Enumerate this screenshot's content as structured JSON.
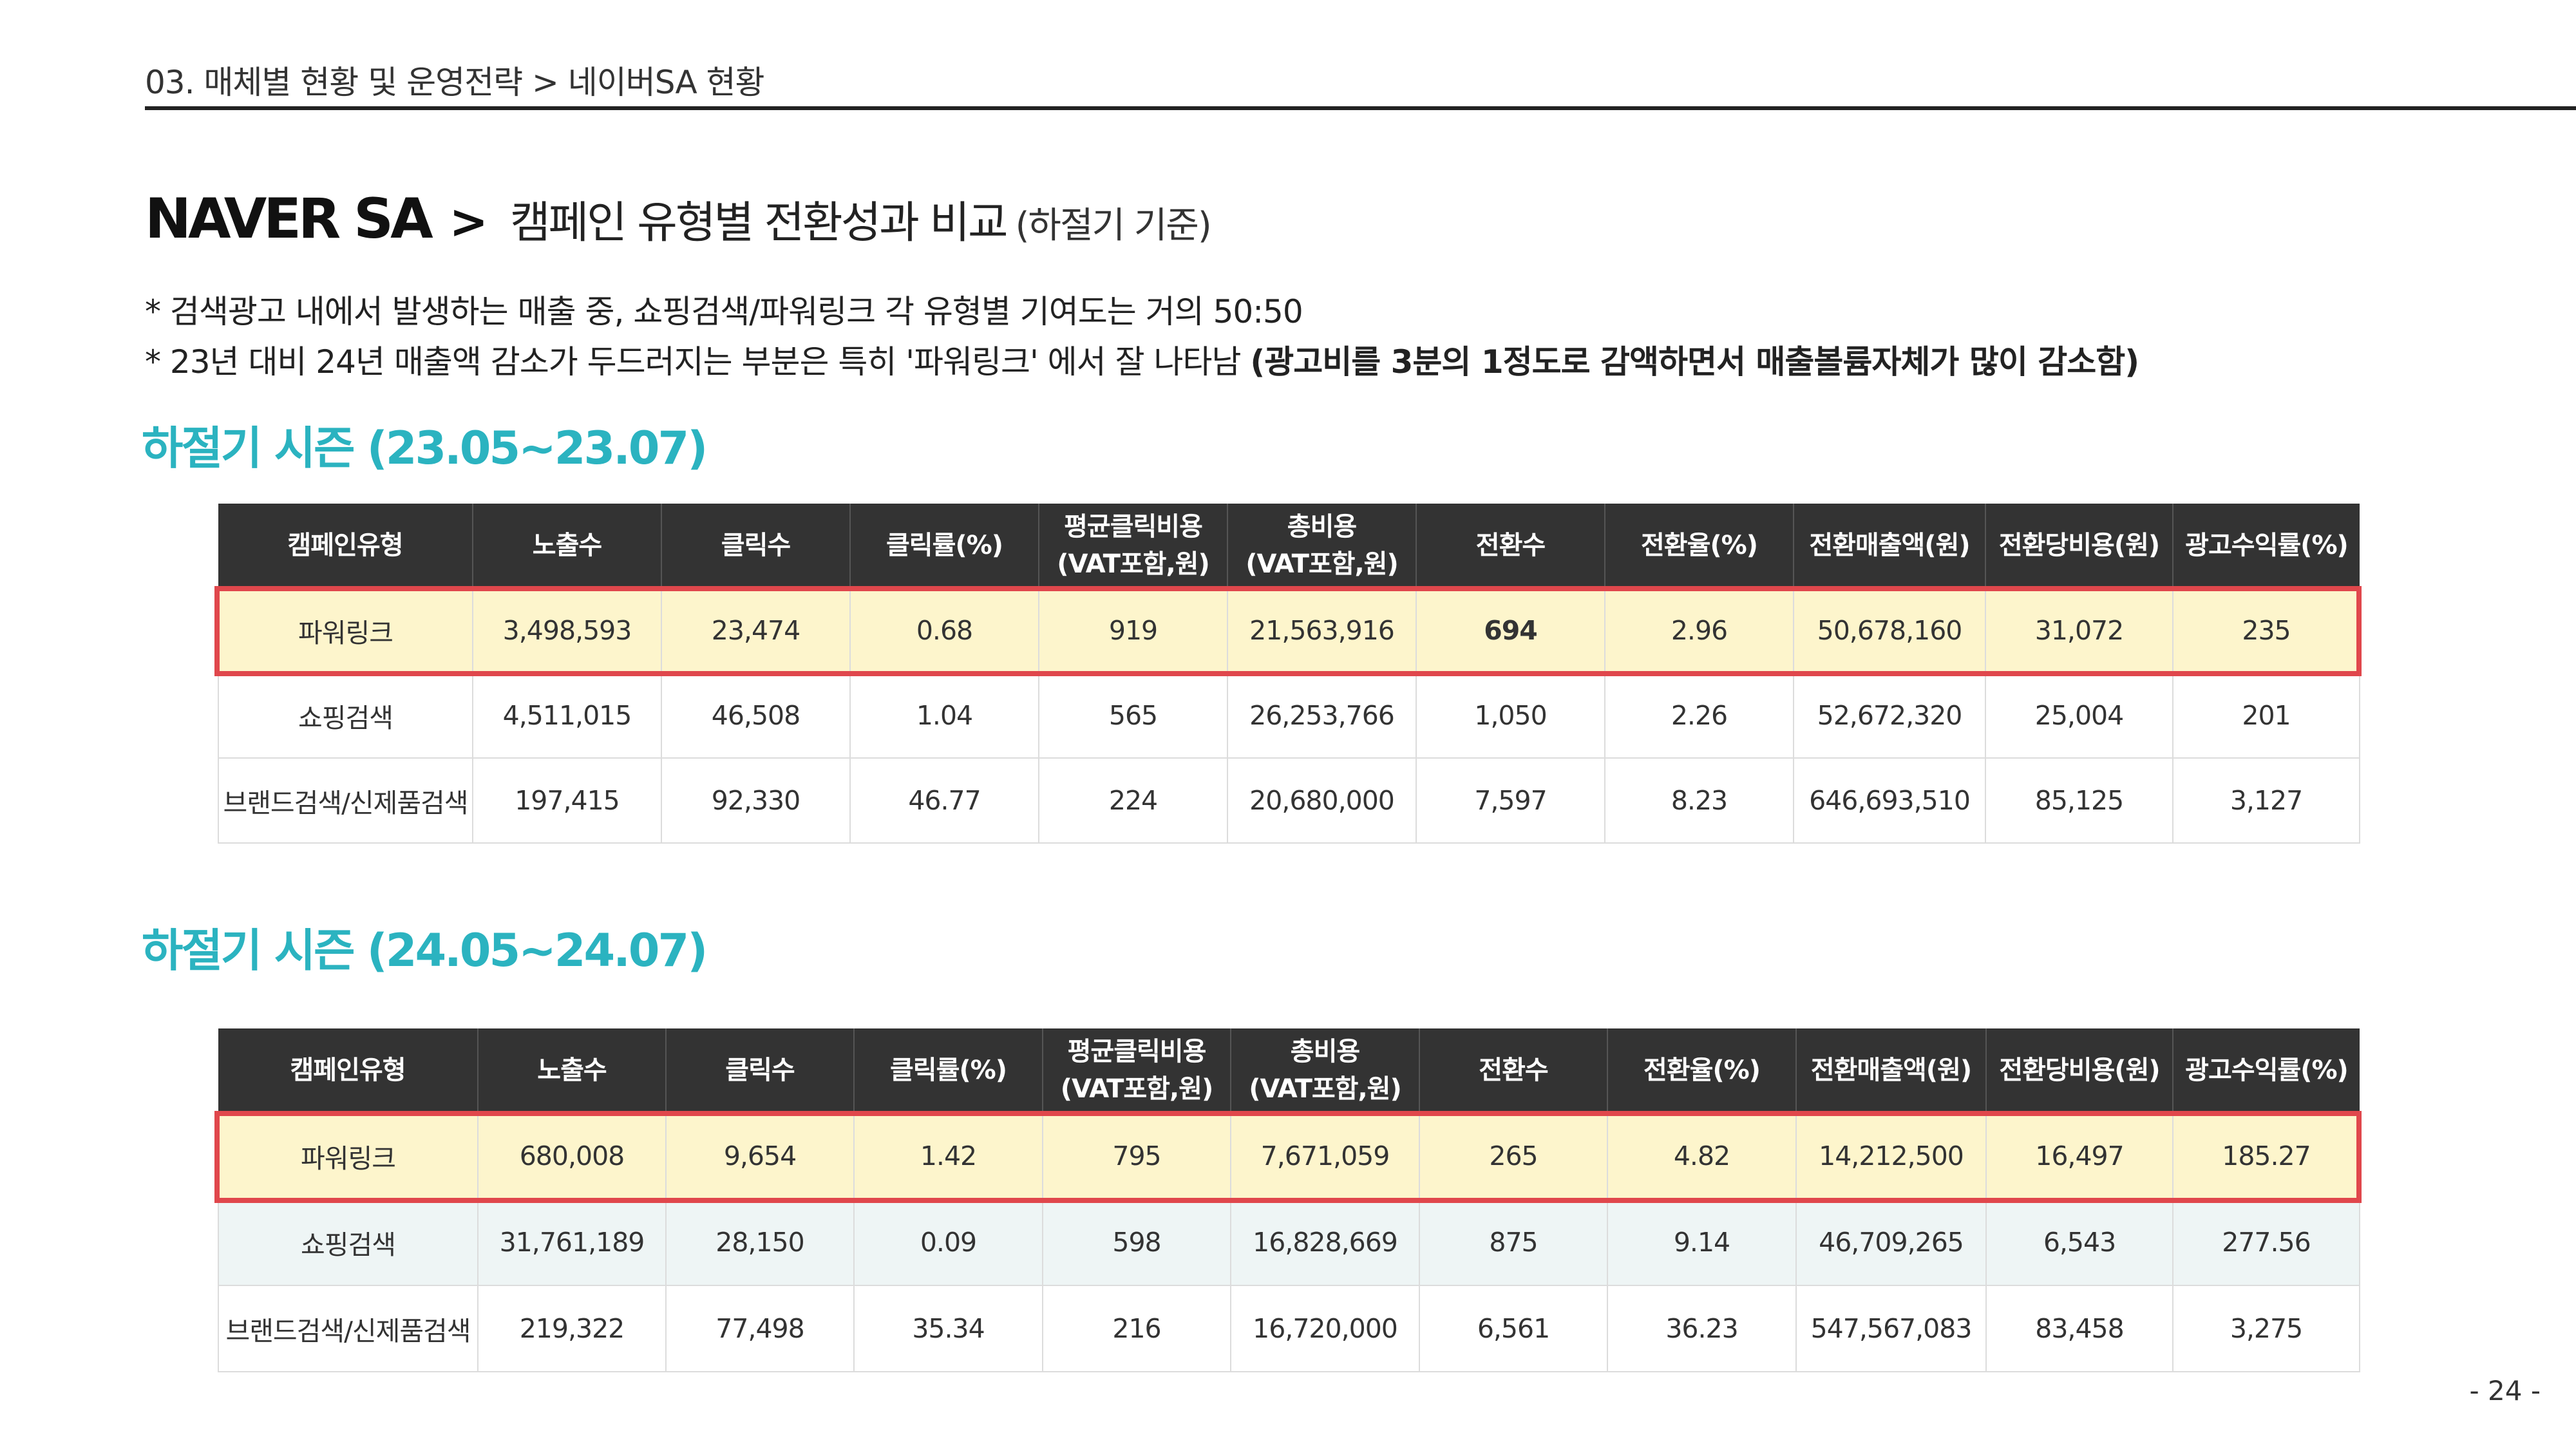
{
  "breadcrumb": "03. 매체별 현황 및 운영전략 > 네이버SA 현황",
  "title": {
    "main": "NAVER SA",
    "separator": ">",
    "sub": "캠페인 유형별 전환성과 비교",
    "note": "(하절기 기준)"
  },
  "notes": {
    "line1": "* 검색광고 내에서 발생하는 매출 중, 쇼핑검색/파워링크 각 유형별 기여도는 거의 50:50",
    "line2_prefix": "* 23년 대비 24년 매출액 감소가 두드러지는 부분은 특히 '파워링크' 에서 잘 나타남 ",
    "line2_bold": "(광고비를 3분의 1정도로 감액하면서 매출볼륨자체가 많이 감소함)"
  },
  "season1": "하절기 시즌  (23.05~23.07)",
  "season2": "하절기 시즌  (24.05~24.07)",
  "headers": [
    "캠페인유형",
    "노출수",
    "클릭수",
    "클릭률(%)",
    "평균클릭비용\n(VAT포함,원)",
    "총비용\n(VAT포함,원)",
    "전환수",
    "전환율(%)",
    "전환매출액(원)",
    "전환당비용(원)",
    "광고수익률(%)"
  ],
  "table1": {
    "rows": [
      [
        "파워링크",
        "3,498,593",
        "23,474",
        "0.68",
        "919",
        "21,563,916",
        "694",
        "2.96",
        "50,678,160",
        "31,072",
        "235"
      ],
      [
        "쇼핑검색",
        "4,511,015",
        "46,508",
        "1.04",
        "565",
        "26,253,766",
        "1,050",
        "2.26",
        "52,672,320",
        "25,004",
        "201"
      ],
      [
        "브랜드검색/신제품검색",
        "197,415",
        "92,330",
        "46.77",
        "224",
        "20,680,000",
        "7,597",
        "8.23",
        "646,693,510",
        "85,125",
        "3,127"
      ]
    ]
  },
  "table2": {
    "rows": [
      [
        "파워링크",
        "680,008",
        "9,654",
        "1.42",
        "795",
        "7,671,059",
        "265",
        "4.82",
        "14,212,500",
        "16,497",
        "185.27"
      ],
      [
        "쇼핑검색",
        "31,761,189",
        "28,150",
        "0.09",
        "598",
        "16,828,669",
        "875",
        "9.14",
        "46,709,265",
        "6,543",
        "277.56"
      ],
      [
        "브랜드검색/신제품검색",
        "219,322",
        "77,498",
        "35.34",
        "216",
        "16,720,000",
        "6,561",
        "36.23",
        "547,567,083",
        "83,458",
        "3,275"
      ]
    ]
  },
  "page_number": "- 24 -",
  "colors": {
    "accent": "#2bb3c0",
    "header_bg": "#333333",
    "highlight_row": "#fdf5cc",
    "highlight_border": "#e0474c",
    "light_row": "#eef5f5"
  }
}
